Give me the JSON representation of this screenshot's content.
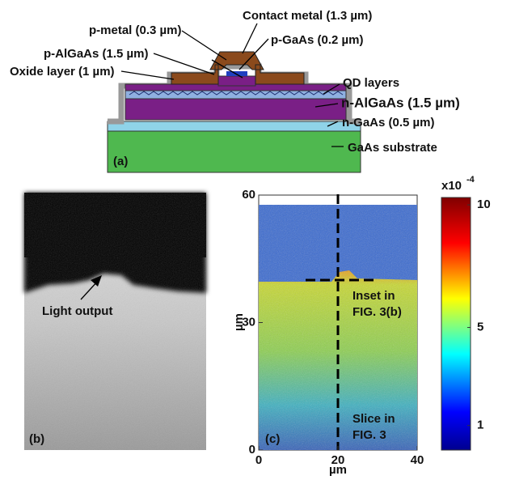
{
  "panel_a": {
    "label": "(a)",
    "layers": [
      "Contact metal (1.3 µm)",
      "p-metal (0.3 µm)",
      "p-GaAs (0.2 µm)",
      "p-AlGaAs (1.5 µm)",
      "Oxide layer (1 µm)",
      "QD layers",
      "n-AlGaAs (1.5 µm)",
      "n-GaAs (0.5 µm)",
      "GaAs substrate"
    ]
  },
  "panel_b": {
    "label": "(b)",
    "annotation": "Light output"
  },
  "panel_c": {
    "label": "(c)",
    "xlabel": "µm",
    "ylabel": "µm",
    "xlim": [
      0,
      40
    ],
    "xticks": [
      0,
      20,
      40
    ],
    "ylim": [
      0,
      60
    ],
    "yticks": [
      0,
      30,
      60
    ],
    "colorbar": {
      "multiplier": "x10",
      "exponent": "-4",
      "lim": [
        0,
        10.3
      ],
      "ticks": [
        1,
        5,
        10
      ]
    },
    "annotations": [
      "Inset in FIG. 3(b)",
      "Slice in FIG. 3"
    ]
  }
}
